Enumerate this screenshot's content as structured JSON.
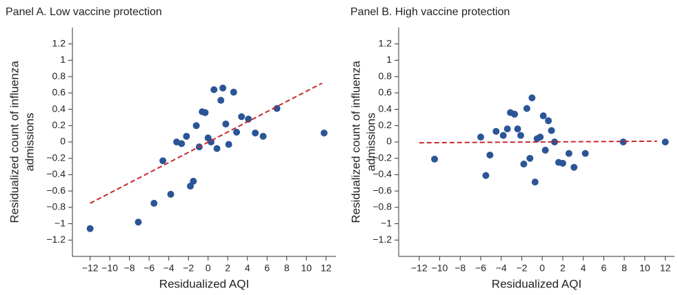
{
  "chart_data": [
    {
      "type": "scatter",
      "title": "Panel A. Low vaccine protection",
      "xlabel": "Residualized AQI",
      "ylabel": [
        "Residualized count of influenza",
        "admissions"
      ],
      "color": "#2b5597",
      "x": [
        -12,
        -7.1,
        -5.5,
        -3.8,
        -4.6,
        -3.2,
        -2.7,
        -2.2,
        -1.2,
        -1.5,
        -1.8,
        -0.9,
        -0.6,
        -0.3,
        0,
        0.3,
        0.6,
        0.9,
        1.3,
        1.5,
        1.8,
        2.1,
        2.6,
        2.9,
        3.4,
        4.1,
        4.8,
        5.6,
        7.0,
        11.8
      ],
      "values": [
        -1.06,
        -0.98,
        -0.75,
        -0.64,
        -0.23,
        0.0,
        -0.02,
        0.07,
        0.2,
        -0.48,
        -0.54,
        -0.06,
        0.37,
        0.36,
        0.05,
        0.0,
        0.64,
        -0.08,
        0.51,
        0.66,
        0.22,
        -0.03,
        0.61,
        0.12,
        0.31,
        0.28,
        0.11,
        0.07,
        0.41,
        0.11
      ],
      "fit": {
        "x": [
          -12,
          11.6
        ],
        "values": [
          -0.75,
          0.72
        ],
        "color": "#c8252c"
      },
      "xlim": [
        -13.8,
        13
      ],
      "ylim": [
        -1.4,
        1.4
      ],
      "xticks": [
        {
          "value": -12,
          "label": "−12"
        },
        {
          "value": -10,
          "label": "−10"
        },
        {
          "value": -8,
          "label": "−8"
        },
        {
          "value": -6,
          "label": "−6"
        },
        {
          "value": -4,
          "label": "−4"
        },
        {
          "value": -2,
          "label": "−2"
        },
        0,
        2,
        4,
        6,
        8,
        10,
        12
      ],
      "yticks": [
        {
          "value": -1.2,
          "label": "−1.2"
        },
        {
          "value": -1,
          "label": "−1"
        },
        {
          "value": -0.8,
          "label": "−0.8"
        },
        {
          "value": -0.6,
          "label": "−0.6"
        },
        {
          "value": -0.4,
          "label": "−0.4"
        },
        {
          "value": -0.2,
          "label": "−0.2"
        },
        0,
        0.2,
        0.4,
        0.6,
        0.8,
        1,
        1.2
      ]
    },
    {
      "type": "scatter",
      "title": "Panel B. High vaccine protection",
      "xlabel": "Residualized AQI",
      "ylabel": [
        "Residualized count of influenza",
        "admissions"
      ],
      "color": "#2b5597",
      "x": [
        -10.5,
        -5.5,
        -6.0,
        -5.1,
        -4.5,
        -3.8,
        -3.4,
        -3.1,
        -2.7,
        -2.4,
        -2.1,
        -1.8,
        -1.5,
        -1.2,
        -1.0,
        -0.7,
        -0.5,
        -0.2,
        0.1,
        0.3,
        0.6,
        0.9,
        1.2,
        1.6,
        2.0,
        2.6,
        3.1,
        4.2,
        7.9,
        12.0
      ],
      "values": [
        -0.21,
        -0.41,
        0.06,
        -0.16,
        0.13,
        0.08,
        0.16,
        0.36,
        0.34,
        0.16,
        0.08,
        -0.27,
        0.41,
        -0.2,
        0.54,
        -0.49,
        0.04,
        0.06,
        0.32,
        -0.1,
        0.26,
        0.14,
        0.0,
        -0.25,
        -0.26,
        -0.14,
        -0.31,
        -0.14,
        0.0,
        0.0
      ],
      "fit": {
        "x": [
          -12,
          11.2
        ],
        "values": [
          -0.01,
          0.01
        ],
        "color": "#c8252c"
      },
      "xlim": [
        -14,
        12.9
      ],
      "ylim": [
        -1.4,
        1.4
      ],
      "xticks": [
        {
          "value": -12,
          "label": "−12"
        },
        {
          "value": -10,
          "label": "−10"
        },
        {
          "value": -8,
          "label": "−8"
        },
        {
          "value": -6,
          "label": "−6"
        },
        {
          "value": -4,
          "label": "−4"
        },
        {
          "value": -2,
          "label": "−2"
        },
        0,
        2,
        4,
        6,
        8,
        10,
        12
      ],
      "yticks": [
        {
          "value": -1.2,
          "label": "−1.2"
        },
        {
          "value": -1,
          "label": "−1"
        },
        {
          "value": -0.8,
          "label": "−0.8"
        },
        {
          "value": -0.6,
          "label": "−0.6"
        },
        {
          "value": -0.4,
          "label": "−0.4"
        },
        {
          "value": -0.2,
          "label": "−0.2"
        },
        0,
        0.2,
        0.4,
        0.6,
        0.8,
        1,
        1.2
      ]
    }
  ]
}
